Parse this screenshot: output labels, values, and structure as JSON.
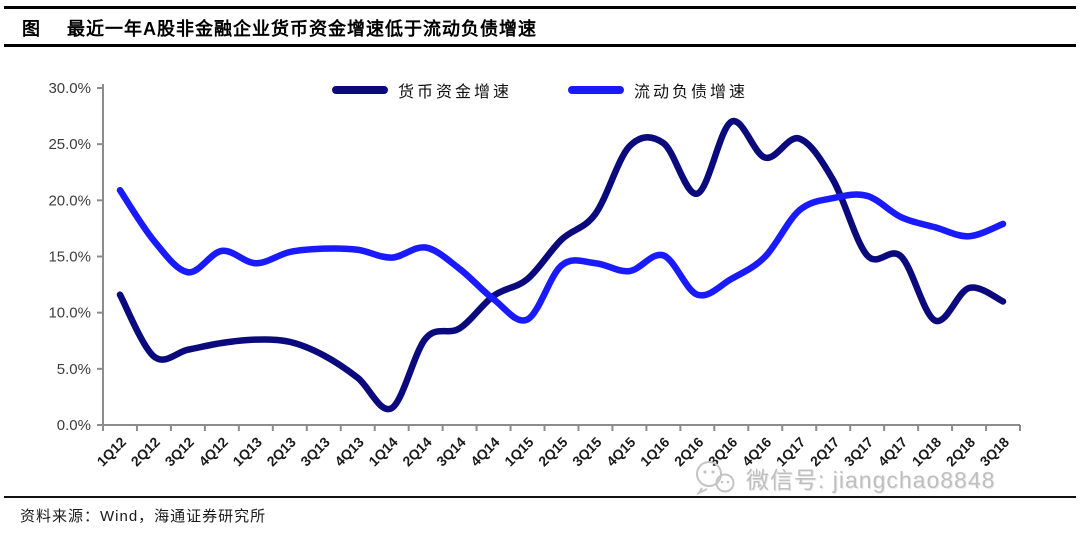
{
  "title": {
    "prefix": "图",
    "text": "最近一年A股非金融企业货币资金增速低于流动负债增速"
  },
  "footer": {
    "source_label": "资料来源：Wind，海通证券研究所"
  },
  "watermark": {
    "icon": "wechat-icon",
    "text": "微信号: jiangchao8848"
  },
  "chart_data": {
    "type": "line",
    "title": "最近一年A股非金融企业货币资金增速低于流动负债增速",
    "categories": [
      "1Q12",
      "2Q12",
      "3Q12",
      "4Q12",
      "1Q13",
      "2Q13",
      "3Q13",
      "4Q13",
      "1Q14",
      "2Q14",
      "3Q14",
      "4Q14",
      "1Q15",
      "2Q15",
      "3Q15",
      "4Q15",
      "1Q16",
      "2Q16",
      "3Q16",
      "4Q16",
      "1Q17",
      "2Q17",
      "3Q17",
      "4Q17",
      "1Q18",
      "2Q18",
      "3Q18"
    ],
    "series": [
      {
        "name": "货币资金增速",
        "color": "#0a0a7d",
        "values": [
          11.6,
          6.1,
          6.7,
          7.3,
          7.6,
          7.4,
          6.2,
          4.2,
          1.5,
          7.7,
          8.6,
          11.5,
          13.0,
          16.5,
          18.8,
          24.8,
          25.1,
          20.6,
          27.0,
          23.8,
          25.5,
          21.8,
          15.1,
          15.0,
          9.3,
          12.2,
          11.0
        ]
      },
      {
        "name": "流动负债增速",
        "color": "#1a1aff",
        "values": [
          20.9,
          16.4,
          13.6,
          15.5,
          14.4,
          15.4,
          15.7,
          15.6,
          14.9,
          15.8,
          13.9,
          11.2,
          9.4,
          14.2,
          14.4,
          13.7,
          15.1,
          11.6,
          13.0,
          15.0,
          19.1,
          20.2,
          20.4,
          18.5,
          17.6,
          16.8,
          17.9
        ]
      }
    ],
    "ylim": [
      0,
      30
    ],
    "ytick_step": 5,
    "ytick_labels": [
      "0.0%",
      "5.0%",
      "10.0%",
      "15.0%",
      "20.0%",
      "25.0%",
      "30.0%"
    ],
    "xlabel": "",
    "ylabel": "",
    "grid": false,
    "legend_position": "top-center",
    "line_smoothing": true,
    "axis_color": "#8c8c8c"
  }
}
